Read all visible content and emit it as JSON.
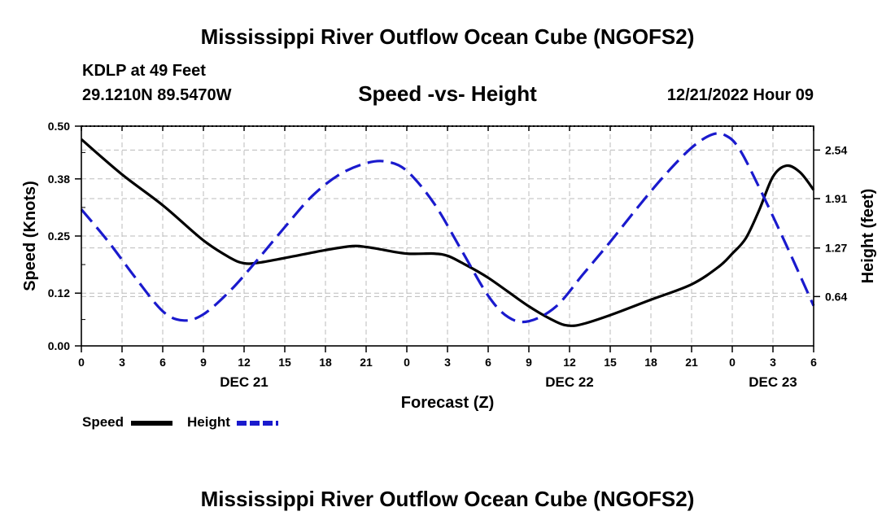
{
  "header": {
    "title": "Mississippi River Outflow Ocean Cube (NGOFS2)",
    "station": "KDLP at 49 Feet",
    "coords": "29.1210N  89.5470W",
    "datetime": "12/21/2022 Hour 09"
  },
  "footer": {
    "title": "Mississippi River Outflow Ocean Cube (NGOFS2)"
  },
  "legend": {
    "speed_label": "Speed",
    "height_label": "Height"
  },
  "colors": {
    "speed": "#000000",
    "height": "#1a1acd",
    "grid": "#bbbbbb"
  },
  "chart_data": {
    "type": "line",
    "title": "Speed -vs- Height",
    "xlabel": "Forecast (Z)",
    "ylabel_left": "Speed (Knots)",
    "ylabel_right": "Height (feet)",
    "x_ticks": [
      "0",
      "3",
      "6",
      "9",
      "12",
      "15",
      "18",
      "21",
      "0",
      "3",
      "6",
      "9",
      "12",
      "15",
      "18",
      "21",
      "0",
      "3",
      "6"
    ],
    "x_tick_hours": [
      0,
      3,
      6,
      9,
      12,
      15,
      18,
      21,
      24,
      27,
      30,
      33,
      36,
      39,
      42,
      45,
      48,
      51,
      54
    ],
    "day_labels": [
      {
        "label": "DEC 21",
        "hour": 12
      },
      {
        "label": "DEC 22",
        "hour": 36
      },
      {
        "label": "DEC 23",
        "hour": 51
      }
    ],
    "xlim": [
      0,
      54
    ],
    "y_left_ticks": [
      "0.00",
      "0.12",
      "0.25",
      "0.38",
      "0.50"
    ],
    "y_left_lim": [
      0,
      0.5
    ],
    "y_right_ticks": [
      "0.64",
      "1.27",
      "1.91",
      "2.54"
    ],
    "y_right_tick_values": [
      0.64,
      1.27,
      1.91,
      2.54
    ],
    "y_right_lim": [
      0,
      2.85
    ],
    "grid": true,
    "series": [
      {
        "name": "Speed",
        "axis": "left",
        "style": "solid",
        "x": [
          0,
          3,
          6,
          9,
          11,
          12,
          13,
          15,
          18,
          20,
          21,
          22,
          24,
          26,
          27,
          28,
          30,
          33,
          35,
          36,
          37,
          39,
          42,
          45,
          47,
          48,
          49,
          50,
          51,
          52,
          53,
          54
        ],
        "y": [
          0.47,
          0.39,
          0.32,
          0.24,
          0.2,
          0.188,
          0.189,
          0.2,
          0.218,
          0.227,
          0.225,
          0.22,
          0.21,
          0.21,
          0.205,
          0.19,
          0.155,
          0.09,
          0.055,
          0.046,
          0.05,
          0.07,
          0.105,
          0.14,
          0.18,
          0.21,
          0.245,
          0.31,
          0.385,
          0.41,
          0.395,
          0.355
        ]
      },
      {
        "name": "Height",
        "axis": "right",
        "style": "dashed",
        "x": [
          0,
          2,
          4,
          6,
          7.5,
          9,
          11,
          13,
          15,
          17,
          19,
          21,
          22.5,
          24,
          26,
          28,
          30,
          31.5,
          33,
          35,
          37,
          39,
          41,
          43,
          45,
          46.5,
          47.5,
          48.5,
          50,
          52,
          54
        ],
        "y": [
          1.77,
          1.35,
          0.88,
          0.45,
          0.33,
          0.41,
          0.72,
          1.12,
          1.54,
          1.94,
          2.22,
          2.37,
          2.39,
          2.27,
          1.85,
          1.25,
          0.65,
          0.37,
          0.32,
          0.51,
          0.93,
          1.35,
          1.79,
          2.21,
          2.57,
          2.74,
          2.73,
          2.56,
          2.05,
          1.3,
          0.52
        ]
      }
    ]
  }
}
